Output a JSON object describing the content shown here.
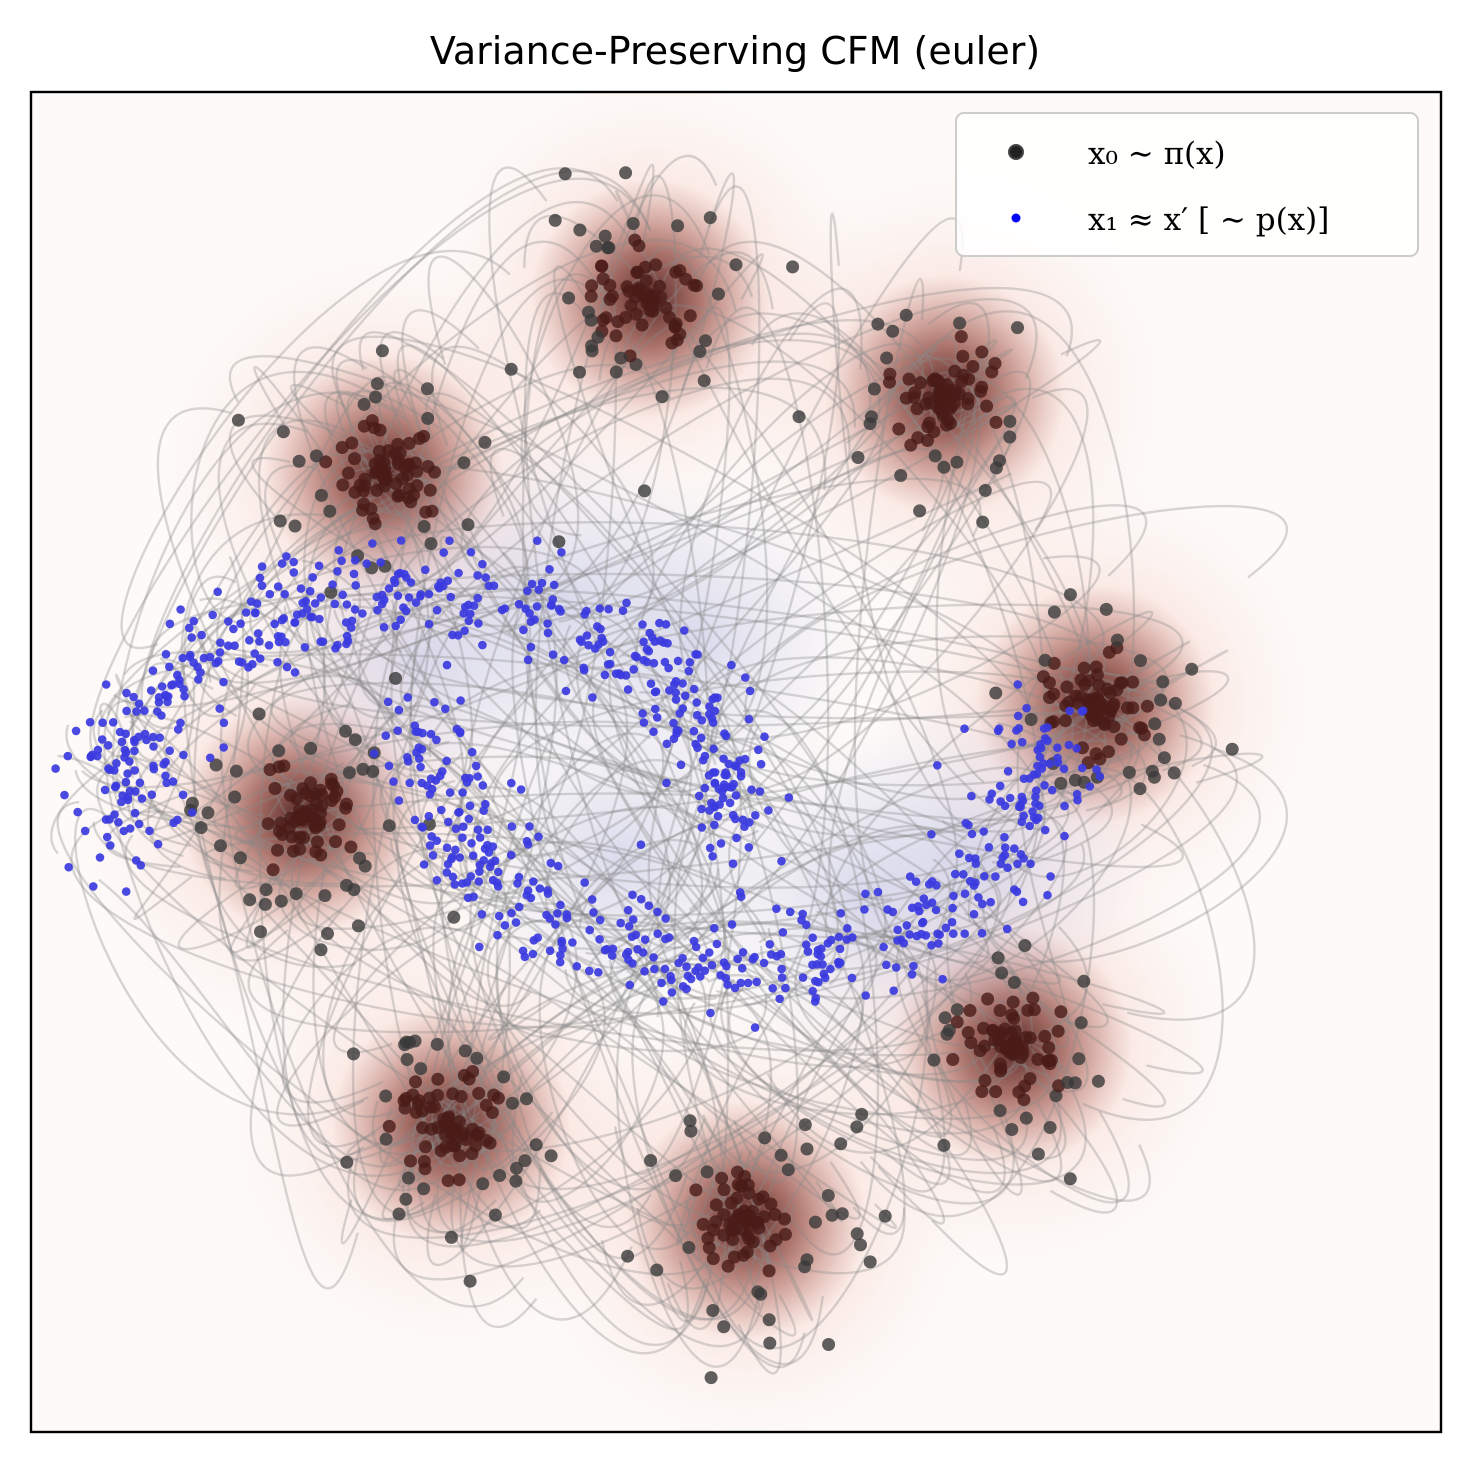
{
  "chart_data": {
    "type": "scatter",
    "title": "Variance-Preserving CFM (euler)",
    "xlabel": "",
    "ylabel": "",
    "grid": false,
    "axis_ticks": false,
    "legend_position": "top-right",
    "legend": [
      {
        "label": "x₀ ∼ π(x)",
        "marker": "circle",
        "color": "#222222"
      },
      {
        "label": "x₁ ≈ x′ [ ∼ p(x)]",
        "marker": "circle",
        "color": "#0000ff"
      }
    ],
    "colors": {
      "source_points": "#3a3a3a",
      "source_core": "#6b2a24",
      "source_halo": "#e8705a",
      "target_points": "#3b3be0",
      "target_halo": "#9aa0d8",
      "trajectories": "#8a8a8a",
      "background": "#fdfaf8"
    },
    "source_distribution": {
      "name": "8 Gaussians",
      "n_modes": 8,
      "points_per_mode": 95
    },
    "target_distribution": {
      "name": "two moons",
      "n_points": 900
    },
    "n_trajectories_drawn": 320
  }
}
